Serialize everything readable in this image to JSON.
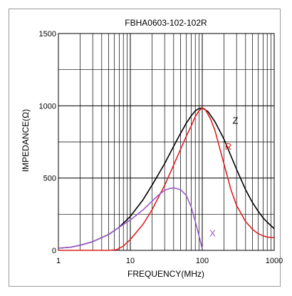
{
  "chart_data": {
    "type": "line",
    "title": "FBHA0603-102-102R",
    "xlabel": "FREQUENCY(MHz)",
    "ylabel": "IMPEDANCE(Ω)",
    "x_scale": "log",
    "xlim": [
      1,
      1000
    ],
    "ylim": [
      0,
      1500
    ],
    "x_ticks": [
      "1",
      "10",
      "100",
      "1000"
    ],
    "y_ticks": [
      "0",
      "500",
      "1000",
      "1500"
    ],
    "grid": true,
    "series": [
      {
        "name": "Z",
        "color": "#000000",
        "points": [
          [
            1,
            15
          ],
          [
            1.5,
            22
          ],
          [
            2,
            35
          ],
          [
            3,
            60
          ],
          [
            5,
            110
          ],
          [
            7,
            160
          ],
          [
            10,
            235
          ],
          [
            15,
            350
          ],
          [
            20,
            450
          ],
          [
            30,
            600
          ],
          [
            40,
            720
          ],
          [
            50,
            810
          ],
          [
            60,
            880
          ],
          [
            70,
            930
          ],
          [
            80,
            965
          ],
          [
            90,
            982
          ],
          [
            100,
            985
          ],
          [
            120,
            960
          ],
          [
            150,
            890
          ],
          [
            200,
            770
          ],
          [
            300,
            560
          ],
          [
            400,
            420
          ],
          [
            500,
            330
          ],
          [
            600,
            270
          ],
          [
            700,
            225
          ],
          [
            800,
            195
          ],
          [
            1000,
            150
          ]
        ]
      },
      {
        "name": "R",
        "color": "#e02020",
        "points": [
          [
            1,
            0
          ],
          [
            5,
            0
          ],
          [
            6.5,
            5
          ],
          [
            8,
            30
          ],
          [
            10,
            75
          ],
          [
            15,
            180
          ],
          [
            20,
            280
          ],
          [
            30,
            450
          ],
          [
            40,
            590
          ],
          [
            50,
            700
          ],
          [
            60,
            790
          ],
          [
            70,
            860
          ],
          [
            80,
            925
          ],
          [
            90,
            965
          ],
          [
            100,
            985
          ],
          [
            110,
            975
          ],
          [
            130,
            910
          ],
          [
            150,
            830
          ],
          [
            200,
            600
          ],
          [
            250,
            420
          ],
          [
            300,
            310
          ],
          [
            400,
            200
          ],
          [
            500,
            145
          ],
          [
            600,
            115
          ],
          [
            700,
            100
          ],
          [
            800,
            92
          ],
          [
            1000,
            88
          ]
        ]
      },
      {
        "name": "X",
        "color": "#9b59c8",
        "points": [
          [
            1,
            15
          ],
          [
            1.5,
            22
          ],
          [
            2,
            35
          ],
          [
            3,
            60
          ],
          [
            5,
            110
          ],
          [
            7,
            160
          ],
          [
            10,
            210
          ],
          [
            15,
            280
          ],
          [
            20,
            340
          ],
          [
            25,
            385
          ],
          [
            30,
            415
          ],
          [
            35,
            428
          ],
          [
            40,
            432
          ],
          [
            50,
            420
          ],
          [
            60,
            380
          ],
          [
            70,
            300
          ],
          [
            80,
            200
          ],
          [
            90,
            100
          ],
          [
            100,
            10
          ]
        ]
      }
    ],
    "annotations": [
      "Z",
      "R",
      "X"
    ]
  }
}
